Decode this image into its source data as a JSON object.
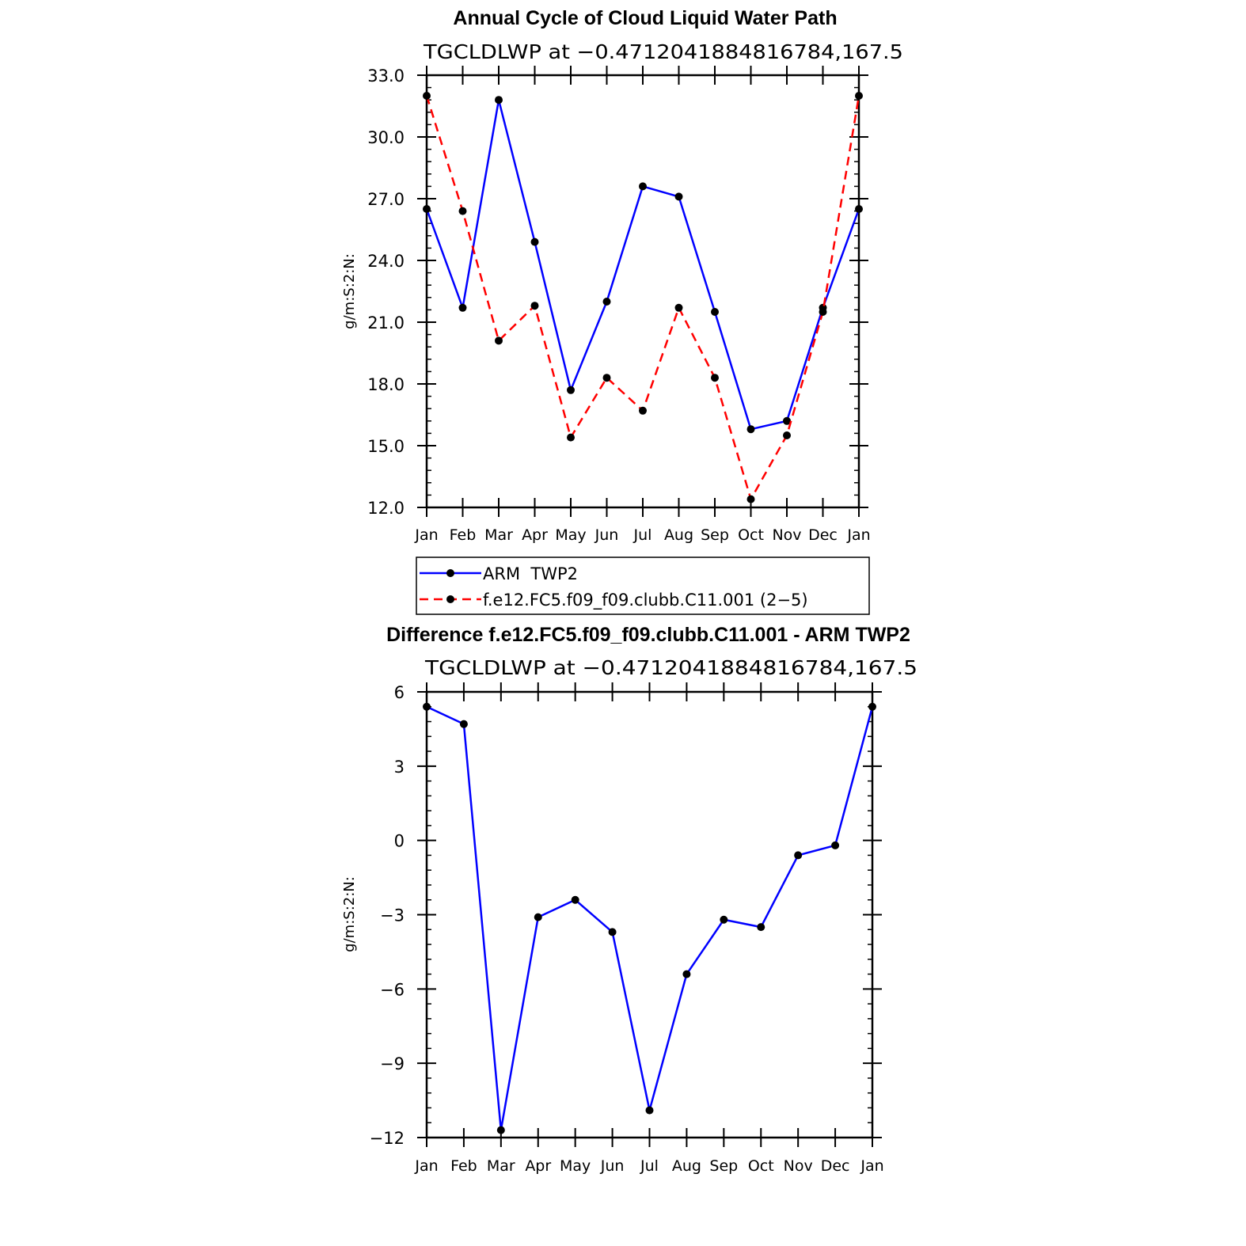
{
  "colors": {
    "obs": "#0000ff",
    "model": "#ff0000",
    "diff": "#0000ff",
    "marker": "#000000"
  },
  "chart_data": [
    {
      "type": "line",
      "title": "Annual Cycle of Cloud Liquid Water Path",
      "subtitle": "TGCLDLWP  at  −0.4712041884816784,167.5",
      "ylabel": "g/m:S:2:N:",
      "xlabel": "",
      "categories": [
        "Jan",
        "Feb",
        "Mar",
        "Apr",
        "May",
        "Jun",
        "Jul",
        "Aug",
        "Sep",
        "Oct",
        "Nov",
        "Dec",
        "Jan"
      ],
      "ylim": [
        12.0,
        33.0
      ],
      "yticks": [
        "12.0",
        "15.0",
        "18.0",
        "21.0",
        "24.0",
        "27.0",
        "30.0",
        "33.0"
      ],
      "grid": false,
      "legend_position": "below",
      "series": [
        {
          "name": "ARM  TWP2",
          "style": "solid",
          "color": "#0000ff",
          "values": [
            26.5,
            21.7,
            31.8,
            24.9,
            17.7,
            22.0,
            27.6,
            27.1,
            21.5,
            15.8,
            16.2,
            21.7,
            26.5
          ]
        },
        {
          "name": "f.e12.FC5.f09_f09.clubb.C11.001 (2−5)",
          "style": "dashed",
          "color": "#ff0000",
          "values": [
            32.0,
            26.4,
            20.1,
            21.8,
            15.4,
            18.3,
            16.7,
            21.7,
            18.3,
            12.4,
            15.5,
            21.5,
            32.0
          ]
        }
      ]
    },
    {
      "type": "line",
      "title": "Difference f.e12.FC5.f09_f09.clubb.C11.001 - ARM TWP2",
      "subtitle": "TGCLDLWP  at  −0.4712041884816784,167.5",
      "ylabel": "g/m:S:2:N:",
      "xlabel": "",
      "categories": [
        "Jan",
        "Feb",
        "Mar",
        "Apr",
        "May",
        "Jun",
        "Jul",
        "Aug",
        "Sep",
        "Oct",
        "Nov",
        "Dec",
        "Jan"
      ],
      "ylim": [
        -12,
        6
      ],
      "yticks": [
        "−12",
        "−9",
        "−6",
        "−3",
        "0",
        "3",
        "6"
      ],
      "grid": false,
      "series": [
        {
          "style": "solid",
          "color": "#0000ff",
          "values": [
            5.4,
            4.7,
            -11.7,
            -3.1,
            -2.4,
            -3.7,
            -10.9,
            -5.4,
            -3.2,
            -3.5,
            -0.6,
            -0.2,
            5.4
          ]
        }
      ]
    }
  ]
}
